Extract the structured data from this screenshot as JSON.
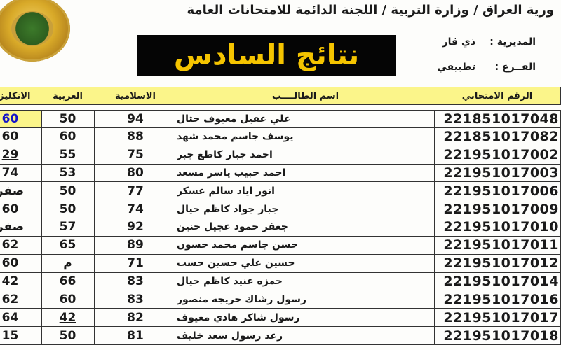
{
  "header": {
    "title": "ورية العراق / وزارة التربية / اللجنة الدائمة للامتحانات العامة",
    "banner": "نتائج السادس",
    "directorate_label": "المديرية :",
    "directorate_value": "ذي قار",
    "branch_label": "الفــرع :",
    "branch_value": "تطبيقي",
    "logo": "ministry-of-education-seal"
  },
  "table": {
    "columns": [
      "الانكليزية",
      "العربية",
      "الاسلامية",
      "اسم الطالــــب",
      "الرقم الامتحاني"
    ],
    "highlight_color": "#fbf58a",
    "rows": [
      {
        "english": "60",
        "arabic": "50",
        "islamic": "94",
        "name": "علي عقيل معيوف حثال",
        "id": "221851017048",
        "highlight": true
      },
      {
        "english": "60",
        "arabic": "60",
        "islamic": "88",
        "name": "يوسف جاسم محمد شهد",
        "id": "221851017082"
      },
      {
        "english": "29",
        "arabic": "55",
        "islamic": "75",
        "name": "احمد جبار كاطع جبر",
        "id": "221951017002",
        "english_underline": true
      },
      {
        "english": "74",
        "arabic": "53",
        "islamic": "80",
        "name": "احمد حبيب ياسر مسعد",
        "id": "221951017003"
      },
      {
        "english": "صفر",
        "arabic": "50",
        "islamic": "77",
        "name": "انور اياد سالم عسكر",
        "id": "221951017006"
      },
      {
        "english": "60",
        "arabic": "50",
        "islamic": "74",
        "name": "جبار جواد كاظم حيال",
        "id": "221951017009"
      },
      {
        "english": "صفر",
        "arabic": "57",
        "islamic": "92",
        "name": "جعفر حمود عجيل حنين",
        "id": "221951017010"
      },
      {
        "english": "62",
        "arabic": "65",
        "islamic": "89",
        "name": "حسن جاسم محمد حسون",
        "id": "221951017011"
      },
      {
        "english": "60",
        "arabic": "م",
        "islamic": "71",
        "name": "حسين علي حسين حسب",
        "id": "221951017012"
      },
      {
        "english": "42",
        "arabic": "66",
        "islamic": "83",
        "name": "حمزه عنيد كاظم حيال",
        "id": "221951017014",
        "english_underline": true
      },
      {
        "english": "62",
        "arabic": "60",
        "islamic": "83",
        "name": "رسول رشاك حريجه منصور",
        "id": "221951017016"
      },
      {
        "english": "64",
        "arabic": "42",
        "islamic": "82",
        "name": "رسول شاكر هادي معيوف",
        "id": "221951017017",
        "arabic_underline": true
      },
      {
        "english": "15",
        "arabic": "50",
        "islamic": "81",
        "name": "رعد رسول سعد خليف",
        "id": "221951017018"
      }
    ]
  }
}
